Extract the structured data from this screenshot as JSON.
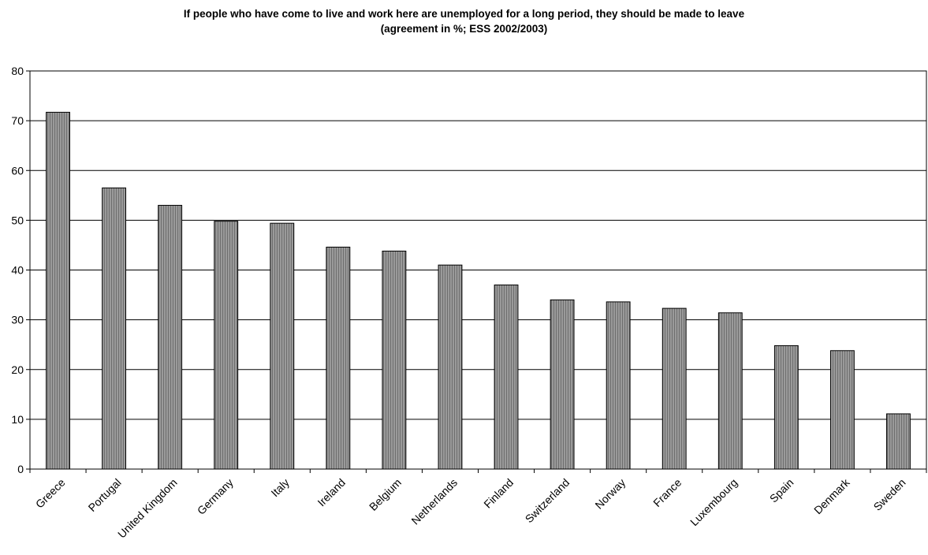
{
  "chart_data": {
    "type": "bar",
    "title": "If people who have come to live and work here are unemployed for a long period, they should be made to leave",
    "subtitle": "(agreement in %; ESS 2002/2003)",
    "xlabel": "",
    "ylabel": "",
    "ylim": [
      0,
      80
    ],
    "yticks": [
      "0",
      "10",
      "20",
      "30",
      "40",
      "50",
      "60",
      "70",
      "80"
    ],
    "grid": true,
    "legend": "none",
    "bar_color": "#8c8c8c",
    "categories": [
      "Greece",
      "Portugal",
      "United Kingdom",
      "Germany",
      "Italy",
      "Ireland",
      "Belgium",
      "Netherlands",
      "Finland",
      "Switzerland",
      "Norway",
      "France",
      "Luxembourg",
      "Spain",
      "Denmark",
      "Sweden"
    ],
    "values": [
      71.7,
      56.5,
      53.0,
      49.8,
      49.4,
      44.6,
      43.8,
      41.0,
      37.0,
      34.0,
      33.6,
      32.3,
      31.4,
      24.8,
      23.8,
      11.1
    ]
  }
}
